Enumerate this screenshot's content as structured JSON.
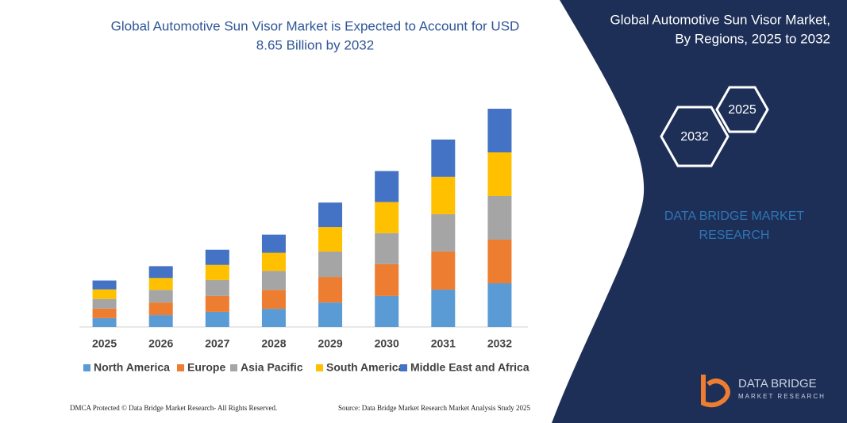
{
  "chart_data": {
    "type": "bar",
    "stacked": true,
    "title": "Global Automotive Sun Visor Market is Expected to Account for USD",
    "subtitle": "8.65 Billion by 2032",
    "categories": [
      "2025",
      "2026",
      "2027",
      "2028",
      "2029",
      "2030",
      "2031",
      "2032"
    ],
    "series": [
      {
        "name": "North America",
        "color": "#5b9bd5",
        "values": [
          0.35,
          0.47,
          0.6,
          0.72,
          0.97,
          1.23,
          1.48,
          1.73
        ]
      },
      {
        "name": "Europe",
        "color": "#ed7d31",
        "values": [
          0.38,
          0.5,
          0.63,
          0.75,
          1.01,
          1.26,
          1.51,
          1.73
        ]
      },
      {
        "name": "Asia Pacific",
        "color": "#a5a5a5",
        "values": [
          0.38,
          0.5,
          0.63,
          0.75,
          1.01,
          1.23,
          1.48,
          1.73
        ]
      },
      {
        "name": "South America",
        "color": "#ffc000",
        "values": [
          0.38,
          0.47,
          0.6,
          0.72,
          0.97,
          1.23,
          1.48,
          1.73
        ]
      },
      {
        "name": "Middle East and Africa",
        "color": "#4472c4",
        "values": [
          0.35,
          0.47,
          0.6,
          0.72,
          0.97,
          1.23,
          1.48,
          1.73
        ]
      }
    ],
    "legend": "bottom"
  },
  "side_panel": {
    "title_line1": "Global Automotive Sun Visor Market,",
    "title_line2": "By Regions, 2025 to 2032",
    "hex_start": "2025",
    "hex_end": "2032",
    "brand_line1": "DATA BRIDGE MARKET",
    "brand_line2": "RESEARCH",
    "logo_line1": "DATA BRIDGE",
    "logo_line2": "MARKET RESEARCH"
  },
  "footer": {
    "left": "DMCA Protected © Data Bridge Market Research-  All Rights Reserved.",
    "right": "Source: Data Bridge Market Research  Market Analysis Study 2025"
  }
}
